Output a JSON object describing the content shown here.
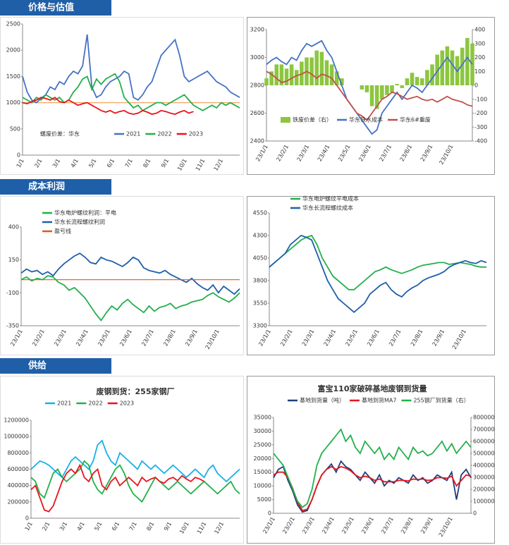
{
  "sections": [
    "价格与估值",
    "成本利润",
    "供给"
  ],
  "chart_data": [
    {
      "type": "line",
      "annotation": "螺废价差：华东",
      "legend": "bottom",
      "ylim": [
        0,
        2500
      ],
      "yticks": [
        0,
        500,
        1000,
        1500,
        2000,
        2500
      ],
      "xticks": [
        "1/1",
        "2/1",
        "3/1",
        "4/1",
        "5/1",
        "6/1",
        "7/1",
        "8/1",
        "9/1",
        "10/1",
        "11/1",
        "12/1"
      ],
      "reference_line": {
        "value": 1000,
        "color": "#f4a460"
      },
      "series": [
        {
          "name": "2021",
          "color": "#4472c4",
          "values": [
            1500,
            1200,
            1050,
            1000,
            1080,
            1150,
            1300,
            1250,
            1400,
            1350,
            1500,
            1600,
            1550,
            1700,
            2300,
            1300,
            1100,
            1150,
            1300,
            1400,
            1450,
            1500,
            1600,
            1550,
            1100,
            1050,
            1150,
            1300,
            1400,
            1650,
            1900,
            2000,
            2100,
            2200,
            1900,
            1500,
            1400,
            1450,
            1500,
            1550,
            1600,
            1500,
            1400,
            1350,
            1300,
            1200,
            1150,
            1100
          ]
        },
        {
          "name": "2022",
          "color": "#22b04b",
          "values": [
            1100,
            1050,
            1000,
            1100,
            1050,
            1150,
            1100,
            1050,
            1100,
            1000,
            1050,
            1200,
            1300,
            1450,
            1500,
            1250,
            1450,
            1350,
            1450,
            1500,
            1550,
            1400,
            1100,
            1000,
            900,
            950,
            850,
            900,
            950,
            1000,
            1000,
            950,
            1000,
            1050,
            1100,
            1150,
            1050,
            950,
            900,
            850,
            900,
            950,
            900,
            1000,
            950,
            1000,
            950,
            900
          ]
        },
        {
          "name": "2023",
          "color": "#e8141c",
          "values": [
            1000,
            980,
            1020,
            1050,
            1100,
            1080,
            1050,
            1100,
            1020,
            1000,
            1050,
            1000,
            950,
            980,
            1000,
            950,
            900,
            850,
            820,
            850,
            800,
            830,
            850,
            800,
            780,
            800,
            850,
            820,
            780,
            800,
            850,
            830,
            800,
            780,
            820,
            850,
            800,
            830
          ]
        }
      ]
    },
    {
      "type": "line",
      "legend": "bottom",
      "ylim": [
        2400,
        3200
      ],
      "yticks": [
        2400,
        2600,
        2800,
        3000,
        3200
      ],
      "y2lim": [
        -400,
        400
      ],
      "y2ticks": [
        -400,
        -300,
        -200,
        -100,
        0,
        100,
        200,
        300,
        400
      ],
      "xticks": [
        "23/1/1",
        "23/2/1",
        "23/3/1",
        "23/4/1",
        "23/5/1",
        "23/6/1",
        "23/7/1",
        "23/8/1",
        "23/9/1",
        "23/10/1"
      ],
      "series": [
        {
          "name": "铁废价差（右）",
          "color": "#8cc63f",
          "style": "bar",
          "axis": "y2",
          "values": [
            50,
            100,
            150,
            150,
            120,
            150,
            110,
            170,
            200,
            200,
            250,
            240,
            180,
            150,
            100,
            50,
            0,
            0,
            0,
            -30,
            -50,
            -150,
            -170,
            -100,
            -70,
            -50,
            10,
            -20,
            50,
            90,
            60,
            50,
            110,
            150,
            220,
            250,
            280,
            250,
            210,
            270,
            340,
            300
          ]
        },
        {
          "name": "华东铁水成本",
          "color": "#4472c4",
          "values": [
            2950,
            2980,
            3000,
            2970,
            2950,
            3000,
            2980,
            3050,
            3100,
            3080,
            3100,
            3120,
            3050,
            3000,
            2900,
            2800,
            2700,
            2650,
            2600,
            2550,
            2500,
            2450,
            2480,
            2600,
            2650,
            2700,
            2750,
            2700,
            2750,
            2800,
            2780,
            2750,
            2800,
            2850,
            2900,
            2950,
            3000,
            2950,
            2900,
            2950,
            3000,
            2950
          ]
        },
        {
          "name": "华东6#重废",
          "color": "#c0504d",
          "values": [
            2900,
            2880,
            2850,
            2820,
            2830,
            2850,
            2870,
            2880,
            2900,
            2880,
            2850,
            2880,
            2870,
            2850,
            2800,
            2750,
            2700,
            2650,
            2600,
            2580,
            2550,
            2600,
            2650,
            2700,
            2720,
            2750,
            2740,
            2720,
            2700,
            2710,
            2720,
            2700,
            2690,
            2700,
            2680,
            2700,
            2720,
            2700,
            2690,
            2680,
            2660,
            2650
          ]
        }
      ]
    },
    {
      "type": "line",
      "legend": "upper left",
      "ylim": [
        -350,
        400
      ],
      "yticks": [
        -350,
        -100,
        150,
        400
      ],
      "xticks": [
        "23/1/1",
        "23/2/1",
        "23/3/1",
        "23/4/1",
        "23/5/1",
        "23/6/1",
        "23/7/1",
        "23/8/1",
        "23/9/1",
        "23/10/1"
      ],
      "series": [
        {
          "name": "华东电炉螺纹利润：平电",
          "color": "#22b04b",
          "values": [
            0,
            20,
            -10,
            10,
            0,
            30,
            20,
            -20,
            -40,
            -80,
            -60,
            -100,
            -140,
            -200,
            -260,
            -310,
            -250,
            -200,
            -230,
            -180,
            -150,
            -190,
            -220,
            -250,
            -200,
            -240,
            -210,
            -200,
            -180,
            -220,
            -200,
            -190,
            -170,
            -160,
            -150,
            -120,
            -100,
            -130,
            -150,
            -170,
            -140,
            -100
          ]
        },
        {
          "name": "华东长流程螺纹利润",
          "color": "#1f5fa8",
          "values": [
            50,
            80,
            60,
            70,
            40,
            60,
            30,
            80,
            120,
            150,
            180,
            200,
            170,
            130,
            120,
            170,
            150,
            140,
            120,
            100,
            130,
            170,
            150,
            90,
            70,
            60,
            50,
            70,
            40,
            20,
            0,
            -20,
            10,
            -30,
            -60,
            -80,
            -40,
            -100,
            -50,
            -80,
            -110,
            -70
          ]
        },
        {
          "name": "盈亏线",
          "color": "#e8541c",
          "style": "dashed",
          "hline": 0
        }
      ]
    },
    {
      "type": "line",
      "legend": "upper left",
      "ylim": [
        3300,
        4550
      ],
      "yticks": [
        3300,
        3550,
        3800,
        4050,
        4300,
        4550
      ],
      "xticks": [
        "23/1/1",
        "23/2/1",
        "23/3/1",
        "23/4/1",
        "23/5/1",
        "23/6/1",
        "23/7/1",
        "23/8/1",
        "23/9/1",
        "23/10/1"
      ],
      "series": [
        {
          "name": "华东电炉螺纹平电成本",
          "color": "#22b04b",
          "values": [
            3950,
            4000,
            4050,
            4100,
            4150,
            4200,
            4250,
            4280,
            4300,
            4200,
            4050,
            3950,
            3850,
            3800,
            3750,
            3700,
            3700,
            3750,
            3800,
            3850,
            3900,
            3920,
            3950,
            3920,
            3900,
            3880,
            3900,
            3920,
            3950,
            3970,
            3980,
            3990,
            4000,
            4000,
            3980,
            3990,
            4000,
            3990,
            3980,
            3960,
            3950,
            3950
          ]
        },
        {
          "name": "华东长流程螺纹成本",
          "color": "#1f5fa8",
          "values": [
            3950,
            4000,
            4050,
            4100,
            4200,
            4250,
            4300,
            4280,
            4250,
            4100,
            3950,
            3800,
            3700,
            3600,
            3550,
            3500,
            3450,
            3500,
            3550,
            3650,
            3700,
            3750,
            3780,
            3700,
            3650,
            3620,
            3680,
            3720,
            3750,
            3800,
            3830,
            3850,
            3870,
            3900,
            3950,
            3980,
            4000,
            4020,
            4000,
            3990,
            4020,
            4000
          ]
        }
      ]
    },
    {
      "type": "line",
      "title": "废钢到货：255家钢厂",
      "legend": "top",
      "ylim": [
        0,
        1200000
      ],
      "yticks": [
        0,
        200000,
        400000,
        600000,
        800000,
        1000000,
        1200000
      ],
      "xticks": [
        "1/1",
        "2/1",
        "3/1",
        "4/1",
        "5/1",
        "6/1",
        "7/1",
        "8/1",
        "9/1",
        "10/1",
        "11/1",
        "12/1"
      ],
      "series": [
        {
          "name": "2021",
          "color": "#17b0e8",
          "values": [
            600000,
            650000,
            700000,
            680000,
            650000,
            600000,
            550000,
            500000,
            600000,
            700000,
            750000,
            700000,
            650000,
            600000,
            700000,
            900000,
            950000,
            800000,
            700000,
            650000,
            800000,
            750000,
            700000,
            650000,
            600000,
            700000,
            650000,
            600000,
            650000,
            600000,
            550000,
            600000,
            650000,
            600000,
            550000,
            500000,
            550000,
            600000,
            550000,
            500000,
            600000,
            650000,
            550000,
            500000,
            450000,
            500000,
            550000,
            600000
          ]
        },
        {
          "name": "2022",
          "color": "#22b04b",
          "values": [
            500000,
            450000,
            300000,
            250000,
            400000,
            550000,
            600000,
            500000,
            450000,
            500000,
            550000,
            600000,
            700000,
            650000,
            450000,
            350000,
            300000,
            400000,
            500000,
            600000,
            650000,
            550000,
            400000,
            300000,
            250000,
            200000,
            300000,
            400000,
            500000,
            450000,
            400000,
            350000,
            400000,
            450000,
            400000,
            350000,
            300000,
            350000,
            400000,
            450000,
            400000,
            350000,
            300000,
            350000,
            400000,
            450000,
            350000,
            300000
          ]
        },
        {
          "name": "2023",
          "color": "#e8141c",
          "values": [
            350000,
            400000,
            250000,
            100000,
            80000,
            150000,
            300000,
            450000,
            550000,
            600000,
            550000,
            650000,
            500000,
            450000,
            550000,
            600000,
            400000,
            350000,
            450000,
            500000,
            400000,
            450000,
            500000,
            450000,
            400000,
            500000,
            450000,
            480000,
            500000,
            450000,
            430000,
            480000,
            500000,
            460000,
            520000,
            480000,
            450000,
            500000,
            480000,
            450000
          ]
        }
      ]
    },
    {
      "type": "line",
      "title": "富宝110家破碎基地废钢到货量",
      "legend": "top",
      "ylim": [
        0,
        35000
      ],
      "yticks": [
        0,
        5000,
        10000,
        15000,
        20000,
        25000,
        30000,
        35000
      ],
      "y2lim": [
        0,
        800000
      ],
      "y2ticks": [
        0,
        100000,
        200000,
        300000,
        400000,
        500000,
        600000,
        700000,
        800000
      ],
      "xticks": [
        "23/1/1",
        "23/2/1",
        "23/3/1",
        "23/4/1",
        "23/5/1",
        "23/6/1",
        "23/7/1",
        "23/8/1",
        "23/9/1",
        "23/10/1"
      ],
      "series": [
        {
          "name": "基地到货量（吨）",
          "color": "#1f3f7a",
          "values": [
            13000,
            16000,
            17000,
            12000,
            8000,
            3000,
            500,
            1000,
            5000,
            10000,
            14000,
            16000,
            18000,
            15000,
            19000,
            17000,
            16000,
            14000,
            12000,
            15000,
            13000,
            11000,
            14000,
            10000,
            12000,
            11000,
            13000,
            12000,
            11000,
            14000,
            12000,
            13000,
            11000,
            12000,
            14000,
            13000,
            12000,
            15000,
            5000,
            14000,
            16000,
            13000
          ]
        },
        {
          "name": "基地到货MA7",
          "color": "#e8141c",
          "values": [
            14000,
            15000,
            15000,
            13000,
            9000,
            4000,
            1000,
            1500,
            5000,
            10000,
            14000,
            16000,
            17000,
            16000,
            17000,
            16500,
            15500,
            14000,
            13000,
            13500,
            13000,
            12000,
            12500,
            11500,
            11500,
            11500,
            12000,
            12000,
            11800,
            12500,
            12300,
            12500,
            12000,
            12200,
            13000,
            13000,
            12800,
            13500,
            10000,
            12000,
            14000,
            13500
          ]
        },
        {
          "name": "255钢厂到货量（右）",
          "color": "#22b04b",
          "axis": "y2",
          "values": [
            500000,
            450000,
            400000,
            300000,
            200000,
            100000,
            50000,
            80000,
            200000,
            400000,
            500000,
            550000,
            600000,
            650000,
            700000,
            600000,
            650000,
            550000,
            500000,
            600000,
            550000,
            500000,
            550000,
            450000,
            500000,
            450000,
            550000,
            500000,
            450000,
            550000,
            500000,
            520000,
            480000,
            500000,
            550000,
            600000,
            520000,
            580000,
            500000,
            550000,
            600000,
            550000
          ]
        }
      ]
    }
  ]
}
